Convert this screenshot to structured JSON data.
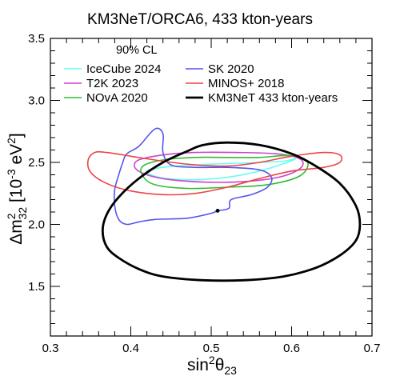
{
  "chart_data": {
    "type": "contour",
    "title": "KM3NeT/ORCA6, 433 kton-years",
    "confidence_label": "90% CL",
    "xlabel": "sin²θ₂₃",
    "ylabel": "Δm²₃₂ [10⁻³ eV²]",
    "xlim": [
      0.3,
      0.7
    ],
    "ylim": [
      1.1,
      3.5
    ],
    "xticks": [
      "0.3",
      "0.4",
      "0.5",
      "0.6",
      "0.7"
    ],
    "yticks": [
      "1.5",
      "2.0",
      "2.5",
      "3.0",
      "3.5"
    ],
    "grid": false,
    "legend_placement": "top",
    "series": [
      {
        "name": "IceCube 2024",
        "color": "#66ffee",
        "width": 1.6,
        "points": [
          [
            0.42,
            2.43
          ],
          [
            0.44,
            2.46
          ],
          [
            0.48,
            2.48
          ],
          [
            0.52,
            2.49
          ],
          [
            0.56,
            2.5
          ],
          [
            0.59,
            2.51
          ],
          [
            0.605,
            2.53
          ],
          [
            0.59,
            2.49
          ],
          [
            0.56,
            2.43
          ],
          [
            0.52,
            2.38
          ],
          [
            0.48,
            2.36
          ],
          [
            0.445,
            2.37
          ],
          [
            0.425,
            2.4
          ]
        ]
      },
      {
        "name": "T2K 2023",
        "color": "#cc44cc",
        "width": 1.6,
        "points": [
          [
            0.41,
            2.52
          ],
          [
            0.44,
            2.56
          ],
          [
            0.48,
            2.58
          ],
          [
            0.53,
            2.58
          ],
          [
            0.58,
            2.57
          ],
          [
            0.61,
            2.53
          ],
          [
            0.612,
            2.46
          ],
          [
            0.59,
            2.39
          ],
          [
            0.55,
            2.35
          ],
          [
            0.5,
            2.34
          ],
          [
            0.45,
            2.36
          ],
          [
            0.42,
            2.4
          ],
          [
            0.405,
            2.46
          ]
        ]
      },
      {
        "name": "NOvA 2020",
        "color": "#33bb33",
        "width": 1.6,
        "points": [
          [
            0.415,
            2.47
          ],
          [
            0.44,
            2.52
          ],
          [
            0.48,
            2.54
          ],
          [
            0.52,
            2.54
          ],
          [
            0.56,
            2.54
          ],
          [
            0.6,
            2.555
          ],
          [
            0.62,
            2.5
          ],
          [
            0.61,
            2.39
          ],
          [
            0.57,
            2.32
          ],
          [
            0.52,
            2.3
          ],
          [
            0.47,
            2.29
          ],
          [
            0.43,
            2.32
          ],
          [
            0.415,
            2.39
          ]
        ]
      },
      {
        "name": "SK 2020",
        "color": "#5555ee",
        "width": 1.6,
        "points": [
          [
            0.507,
            2.11
          ],
          [
            0.522,
            2.13
          ],
          [
            0.525,
            2.2
          ],
          [
            0.55,
            2.24
          ],
          [
            0.57,
            2.3
          ],
          [
            0.575,
            2.38
          ],
          [
            0.56,
            2.44
          ],
          [
            0.52,
            2.46
          ],
          [
            0.48,
            2.46
          ],
          [
            0.45,
            2.48
          ],
          [
            0.44,
            2.58
          ],
          [
            0.44,
            2.73
          ],
          [
            0.43,
            2.77
          ],
          [
            0.41,
            2.63
          ],
          [
            0.395,
            2.57
          ],
          [
            0.39,
            2.5
          ],
          [
            0.385,
            2.4
          ],
          [
            0.38,
            2.28
          ],
          [
            0.38,
            2.15
          ],
          [
            0.385,
            2.04
          ],
          [
            0.395,
            2.0
          ],
          [
            0.41,
            2.02
          ],
          [
            0.43,
            2.04
          ],
          [
            0.47,
            2.05
          ],
          [
            0.5,
            2.09
          ],
          [
            0.507,
            2.11
          ]
        ]
      },
      {
        "name": "MINOS+ 2018",
        "color": "#ee4444",
        "width": 1.6,
        "points": [
          [
            0.37,
            2.58
          ],
          [
            0.4,
            2.55
          ],
          [
            0.44,
            2.51
          ],
          [
            0.48,
            2.48
          ],
          [
            0.52,
            2.47
          ],
          [
            0.56,
            2.5
          ],
          [
            0.6,
            2.55
          ],
          [
            0.64,
            2.58
          ],
          [
            0.66,
            2.56
          ],
          [
            0.66,
            2.5
          ],
          [
            0.64,
            2.46
          ],
          [
            0.6,
            2.43
          ],
          [
            0.56,
            2.37
          ],
          [
            0.52,
            2.3
          ],
          [
            0.48,
            2.25
          ],
          [
            0.44,
            2.24
          ],
          [
            0.4,
            2.27
          ],
          [
            0.37,
            2.33
          ],
          [
            0.35,
            2.42
          ],
          [
            0.347,
            2.52
          ],
          [
            0.355,
            2.58
          ]
        ]
      },
      {
        "name": "KM3NeT 433 kton-years",
        "color": "#000000",
        "width": 2.8,
        "points": [
          [
            0.52,
            2.66
          ],
          [
            0.56,
            2.64
          ],
          [
            0.6,
            2.57
          ],
          [
            0.63,
            2.47
          ],
          [
            0.66,
            2.33
          ],
          [
            0.68,
            2.15
          ],
          [
            0.685,
            2.0
          ],
          [
            0.68,
            1.87
          ],
          [
            0.66,
            1.75
          ],
          [
            0.63,
            1.65
          ],
          [
            0.59,
            1.58
          ],
          [
            0.54,
            1.55
          ],
          [
            0.49,
            1.55
          ],
          [
            0.44,
            1.58
          ],
          [
            0.41,
            1.64
          ],
          [
            0.385,
            1.73
          ],
          [
            0.37,
            1.82
          ],
          [
            0.365,
            1.95
          ],
          [
            0.37,
            2.08
          ],
          [
            0.385,
            2.22
          ],
          [
            0.41,
            2.37
          ],
          [
            0.44,
            2.5
          ],
          [
            0.47,
            2.59
          ],
          [
            0.49,
            2.64
          ]
        ]
      }
    ],
    "best_fit_point": [
      0.508,
      2.11
    ]
  }
}
